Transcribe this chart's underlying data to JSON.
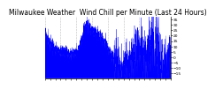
{
  "title": "Milwaukee Weather  Wind Chill per Minute (Last 24 Hours)",
  "title_fontsize": 5.5,
  "bg_color": "#ffffff",
  "plot_bg_color": "#ffffff",
  "line_color": "#0000ff",
  "fill_color": "#0000ff",
  "grid_color": "#888888",
  "yticks": [
    35,
    30,
    25,
    20,
    15,
    10,
    5,
    0,
    -5,
    -10,
    -15
  ],
  "ymin": -20,
  "ymax": 38,
  "num_points": 1440,
  "noise_scale": 3.0,
  "noise_seed": 17,
  "y_profile": [
    22,
    21,
    20,
    19,
    18,
    17,
    16,
    15,
    14,
    13,
    12,
    11,
    10,
    9,
    8,
    8,
    7,
    7,
    6,
    6,
    6,
    6,
    6,
    5,
    5,
    5,
    5,
    5,
    5,
    5,
    5,
    5,
    5,
    5,
    5,
    5,
    4,
    4,
    4,
    4,
    4,
    4,
    4,
    4,
    4,
    4,
    4,
    4,
    5,
    5,
    5,
    5,
    6,
    7,
    8,
    10,
    12,
    14,
    16,
    18,
    20,
    22,
    24,
    26,
    28,
    30,
    32,
    31,
    30,
    29,
    28,
    27,
    26,
    25,
    25,
    25,
    24,
    24,
    24,
    23,
    23,
    22,
    22,
    21,
    21,
    20,
    20,
    19,
    19,
    18,
    18,
    17,
    16,
    15,
    14,
    13,
    12,
    11,
    10,
    9,
    8,
    7,
    6,
    5,
    4,
    3,
    2,
    1,
    0,
    -1,
    -2,
    -3,
    -4,
    -5,
    -6,
    -7,
    -8,
    -9,
    -10,
    -11,
    -12,
    -13,
    -14,
    -15,
    -14,
    -13,
    -12,
    -11,
    -10,
    -9,
    -8,
    -7,
    -6,
    -5,
    -4,
    -3,
    -2,
    -1,
    0,
    1,
    2,
    3,
    4,
    5,
    6,
    7,
    8,
    9,
    10,
    9,
    8,
    7,
    6,
    5,
    4,
    3,
    2,
    1,
    0,
    1,
    2,
    3,
    4,
    5,
    6,
    7,
    8,
    9,
    10,
    9,
    8,
    7,
    6,
    5,
    4,
    3,
    2,
    1,
    0,
    -1,
    -2,
    -3,
    -4,
    -5,
    -6,
    -7,
    -8,
    -9,
    -10,
    -9,
    -8,
    -7,
    -6,
    -5,
    -4,
    -3,
    -2,
    -1,
    0,
    1
  ]
}
